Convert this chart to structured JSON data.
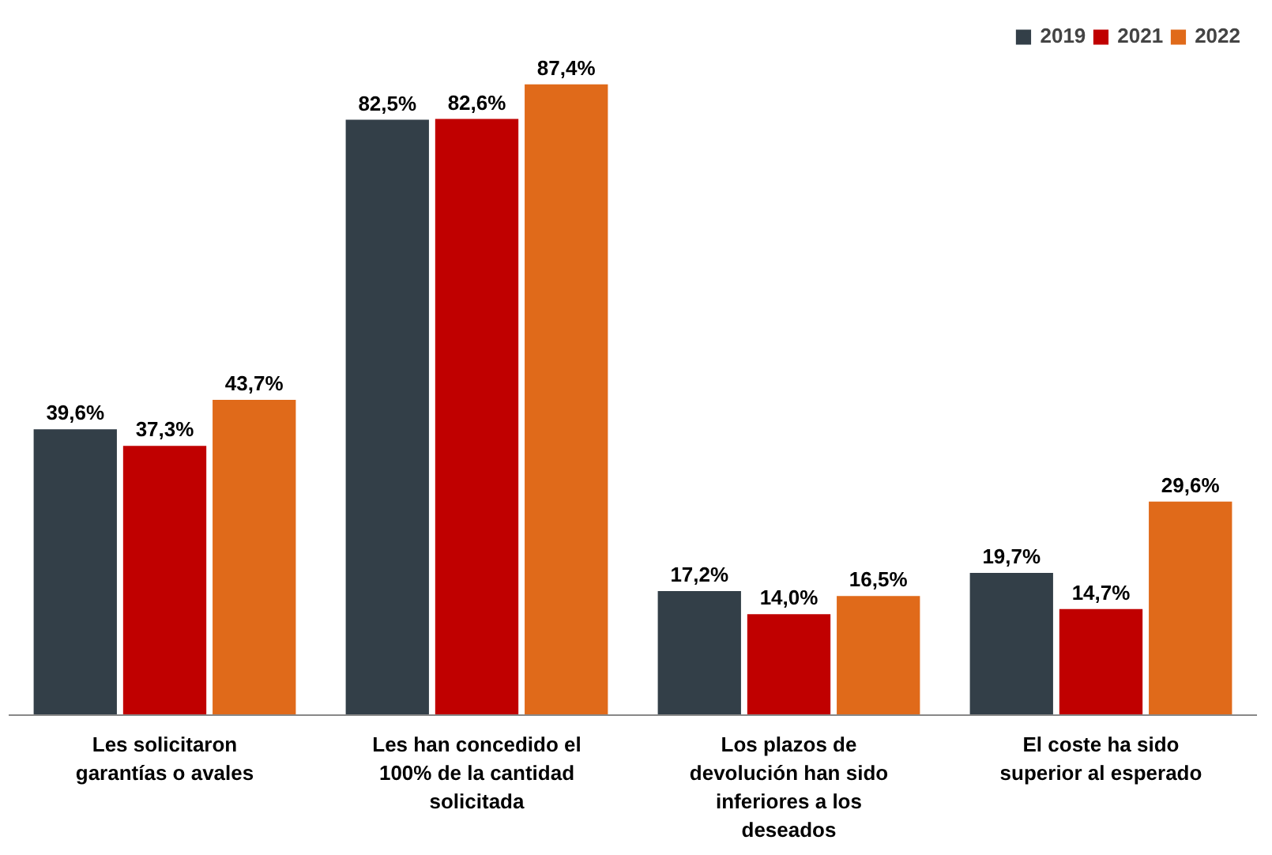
{
  "chart_data": {
    "type": "bar",
    "categories": [
      "Les solicitaron garantías o avales",
      "Les han concedido el 100% de la cantidad solicitada",
      "Los plazos de devolución han sido inferiores a los deseados",
      "El coste ha sido superior al esperado"
    ],
    "series": [
      {
        "name": "2019",
        "color": "#333f48",
        "values": [
          39.6,
          82.5,
          17.2,
          19.7
        ],
        "value_labels": [
          "39,6%",
          "82,5%",
          "17,2%",
          "19,7%"
        ]
      },
      {
        "name": "2021",
        "color": "#c00000",
        "values": [
          37.3,
          82.6,
          14.0,
          14.7
        ],
        "value_labels": [
          "37,3%",
          "82,6%",
          "14,0%",
          "14,7%"
        ]
      },
      {
        "name": "2022",
        "color": "#e06a1a",
        "values": [
          43.7,
          87.4,
          16.5,
          29.6
        ],
        "value_labels": [
          "43,7%",
          "87,4%",
          "16,5%",
          "29,6%"
        ]
      }
    ],
    "legend": "top right",
    "grid": false,
    "tick_labels": "x"
  }
}
